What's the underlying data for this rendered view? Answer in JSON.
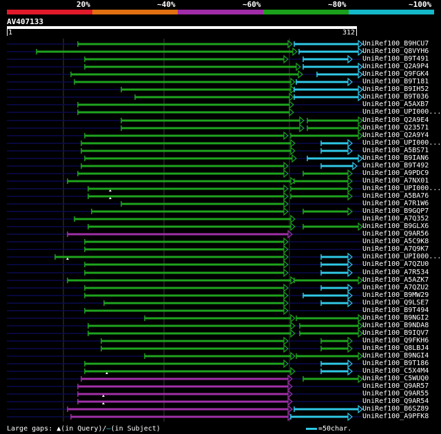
{
  "legend": [
    {
      "label": "20%",
      "color": "#e01a2a"
    },
    {
      "label": "~40%",
      "color": "#e07010"
    },
    {
      "label": "~60%",
      "color": "#a02ca8"
    },
    {
      "label": "~80%",
      "color": "#1aa01a"
    },
    {
      "label": "~100%",
      "color": "#14b8c8"
    }
  ],
  "query": {
    "title": "AV407133",
    "start": "1",
    "end": "312"
  },
  "colors": {
    "green": "#1ea41e",
    "magenta": "#a030a8",
    "cyan": "#2fc9e6",
    "dark": "#0a0a50",
    "grid": "#3a3a3a"
  },
  "hits": [
    {
      "label": "UniRef100_B9HCU7",
      "dark": [
        10,
        525
      ],
      "segs": [
        [
          113,
          418,
          "g"
        ],
        [
          427,
          520,
          "c"
        ]
      ]
    },
    {
      "label": "UniRef100_Q8VYH6",
      "dark": [
        10,
        525
      ],
      "segs": [
        [
          53,
          425,
          "g"
        ],
        [
          434,
          520,
          "c"
        ]
      ]
    },
    {
      "label": "UniRef100_B9T491",
      "dark": [
        10,
        525
      ],
      "segs": [
        [
          123,
          412,
          "g"
        ],
        [
          440,
          505,
          "c"
        ]
      ]
    },
    {
      "label": "UniRef100_Q2A9P4",
      "dark": [
        10,
        525
      ],
      "segs": [
        [
          123,
          430,
          "g"
        ],
        [
          440,
          520,
          "c"
        ]
      ]
    },
    {
      "label": "UniRef100_Q9FGK4",
      "dark": [
        10,
        525
      ],
      "segs": [
        [
          103,
          433,
          "g"
        ],
        [
          460,
          520,
          "c"
        ]
      ]
    },
    {
      "label": "UniRef100_B9T181",
      "dark": [
        10,
        525
      ],
      "segs": [
        [
          108,
          422,
          "g"
        ],
        [
          430,
          505,
          "c"
        ]
      ]
    },
    {
      "label": "UniRef100_B9IH52",
      "dark": [
        10,
        525
      ],
      "segs": [
        [
          176,
          422,
          "g"
        ],
        [
          427,
          520,
          "c"
        ]
      ]
    },
    {
      "label": "UniRef100_B9T036",
      "dark": [
        10,
        525
      ],
      "segs": [
        [
          196,
          420,
          "g"
        ],
        [
          427,
          520,
          "c"
        ]
      ]
    },
    {
      "label": "UniRef100_A5AXB7",
      "dark": [
        10,
        525
      ],
      "segs": [
        [
          113,
          420,
          "g"
        ]
      ]
    },
    {
      "label": "UniRef100_UPI000...",
      "dark": [
        10,
        525
      ],
      "segs": [
        [
          113,
          420,
          "g"
        ]
      ]
    },
    {
      "label": "UniRef100_Q2A9E4",
      "dark": [
        10,
        525
      ],
      "segs": [
        [
          176,
          435,
          "g"
        ],
        [
          446,
          520,
          "g"
        ]
      ]
    },
    {
      "label": "UniRef100_Q23571",
      "dark": [
        10,
        525
      ],
      "segs": [
        [
          176,
          435,
          "g"
        ],
        [
          446,
          520,
          "g"
        ]
      ]
    },
    {
      "label": "UniRef100_Q2A9Y4",
      "dark": [
        10,
        525
      ],
      "segs": [
        [
          123,
          412,
          "g"
        ],
        [
          422,
          520,
          "g"
        ]
      ]
    },
    {
      "label": "UniRef100_UPI000...",
      "dark": [
        10,
        525
      ],
      "segs": [
        [
          118,
          422,
          "g"
        ],
        [
          466,
          505,
          "c"
        ]
      ]
    },
    {
      "label": "UniRef100_A5BS71",
      "dark": [
        10,
        525
      ],
      "segs": [
        [
          118,
          422,
          "g"
        ],
        [
          466,
          505,
          "c"
        ]
      ]
    },
    {
      "label": "UniRef100_B9IAN6",
      "dark": [
        10,
        525
      ],
      "segs": [
        [
          123,
          424,
          "g"
        ],
        [
          446,
          520,
          "c"
        ]
      ]
    },
    {
      "label": "UniRef100_B9T492",
      "dark": [
        10,
        525
      ],
      "segs": [
        [
          118,
          412,
          "g"
        ],
        [
          466,
          512,
          "c"
        ]
      ]
    },
    {
      "label": "UniRef100_A9PDC9",
      "dark": [
        10,
        525
      ],
      "segs": [
        [
          113,
          412,
          "g"
        ],
        [
          440,
          505,
          "g"
        ]
      ]
    },
    {
      "label": "UniRef100_A7NX01",
      "dark": [
        10,
        525
      ],
      "segs": [
        [
          98,
          422,
          "g"
        ],
        [
          427,
          505,
          "g"
        ]
      ]
    },
    {
      "label": "UniRef100_UPI000...",
      "dark": [
        10,
        525
      ],
      "segs": [
        [
          128,
          412,
          "g"
        ],
        [
          422,
          505,
          "g"
        ]
      ],
      "gap": 160
    },
    {
      "label": "UniRef100_A5BA76",
      "dark": [
        10,
        525
      ],
      "segs": [
        [
          128,
          412,
          "g"
        ],
        [
          422,
          505,
          "g"
        ]
      ],
      "gap": 160
    },
    {
      "label": "UniRef100_A7R1W6",
      "dark": [
        10,
        525
      ],
      "segs": [
        [
          176,
          412,
          "g"
        ]
      ]
    },
    {
      "label": "UniRef100_B9GQP7",
      "dark": [
        10,
        525
      ],
      "segs": [
        [
          133,
          412,
          "g"
        ],
        [
          440,
          505,
          "g"
        ]
      ]
    },
    {
      "label": "UniRef100_A7Q352",
      "dark": [
        10,
        525
      ],
      "segs": [
        [
          108,
          422,
          "g"
        ]
      ]
    },
    {
      "label": "UniRef100_B9GLX6",
      "dark": [
        10,
        525
      ],
      "segs": [
        [
          128,
          422,
          "g"
        ],
        [
          440,
          520,
          "g"
        ]
      ]
    },
    {
      "label": "UniRef100_Q9AR56",
      "dark": [
        10,
        525
      ],
      "segs": [
        [
          98,
          418,
          "m"
        ]
      ]
    },
    {
      "label": "UniRef100_A5C9K8",
      "dark": [
        10,
        525
      ],
      "segs": [
        [
          123,
          412,
          "g"
        ]
      ]
    },
    {
      "label": "UniRef100_A7Q9K7",
      "dark": [
        10,
        525
      ],
      "segs": [
        [
          123,
          412,
          "g"
        ]
      ]
    },
    {
      "label": "UniRef100_UPI000...",
      "dark": [
        10,
        525
      ],
      "segs": [
        [
          80,
          412,
          "g"
        ],
        [
          466,
          505,
          "c"
        ]
      ],
      "gap": 98
    },
    {
      "label": "UniRef100_A7QZU0",
      "dark": [
        10,
        525
      ],
      "segs": [
        [
          123,
          412,
          "g"
        ],
        [
          466,
          505,
          "c"
        ]
      ]
    },
    {
      "label": "UniRef100_A7R534",
      "dark": [
        10,
        525
      ],
      "segs": [
        [
          123,
          412,
          "g"
        ],
        [
          466,
          505,
          "c"
        ]
      ]
    },
    {
      "label": "UniRef100_A5AZK7",
      "dark": [
        10,
        525
      ],
      "segs": [
        [
          98,
          422,
          "g"
        ],
        [
          427,
          520,
          "g"
        ]
      ]
    },
    {
      "label": "UniRef100_A7QZU2",
      "dark": [
        10,
        525
      ],
      "segs": [
        [
          123,
          412,
          "g"
        ],
        [
          466,
          505,
          "c"
        ]
      ]
    },
    {
      "label": "UniRef100_B9MW29",
      "dark": [
        10,
        525
      ],
      "segs": [
        [
          123,
          412,
          "g"
        ],
        [
          440,
          505,
          "c"
        ]
      ]
    },
    {
      "label": "UniRef100_Q9LSE7",
      "dark": [
        10,
        525
      ],
      "segs": [
        [
          151,
          412,
          "g"
        ],
        [
          466,
          505,
          "c"
        ]
      ]
    },
    {
      "label": "UniRef100_B9T494",
      "dark": [
        10,
        525
      ],
      "segs": [
        [
          123,
          412,
          "g"
        ]
      ]
    },
    {
      "label": "UniRef100_B9NGI2",
      "dark": [
        10,
        525
      ],
      "segs": [
        [
          210,
          422,
          "g"
        ],
        [
          430,
          520,
          "g"
        ]
      ]
    },
    {
      "label": "UniRef100_B9NDA8",
      "dark": [
        10,
        525
      ],
      "segs": [
        [
          128,
          422,
          "g"
        ],
        [
          435,
          520,
          "g"
        ]
      ]
    },
    {
      "label": "UniRef100_B9IQV7",
      "dark": [
        10,
        525
      ],
      "segs": [
        [
          128,
          422,
          "g"
        ],
        [
          435,
          520,
          "g"
        ]
      ]
    },
    {
      "label": "UniRef100_Q9FKH6",
      "dark": [
        10,
        525
      ],
      "segs": [
        [
          147,
          412,
          "g"
        ],
        [
          466,
          505,
          "g"
        ]
      ]
    },
    {
      "label": "UniRef100_Q8LBJ4",
      "dark": [
        10,
        525
      ],
      "segs": [
        [
          147,
          412,
          "g"
        ],
        [
          466,
          505,
          "g"
        ]
      ]
    },
    {
      "label": "UniRef100_B9NGI4",
      "dark": [
        10,
        525
      ],
      "segs": [
        [
          210,
          422,
          "g"
        ],
        [
          430,
          520,
          "g"
        ]
      ]
    },
    {
      "label": "UniRef100_B9T186",
      "dark": [
        10,
        525
      ],
      "segs": [
        [
          123,
          412,
          "g"
        ],
        [
          466,
          505,
          "c"
        ]
      ]
    },
    {
      "label": "UniRef100_C5X4M4",
      "dark": [
        10,
        525
      ],
      "segs": [
        [
          123,
          422,
          "g"
        ],
        [
          466,
          505,
          "c"
        ]
      ],
      "gap": 155
    },
    {
      "label": "UniRef100_C5WUQ0",
      "dark": [
        10,
        525
      ],
      "segs": [
        [
          118,
          418,
          "m"
        ],
        [
          440,
          520,
          "g"
        ]
      ]
    },
    {
      "label": "UniRef100_Q9AR57",
      "dark": [
        10,
        525
      ],
      "segs": [
        [
          113,
          418,
          "m"
        ]
      ]
    },
    {
      "label": "UniRef100_Q9AR55",
      "dark": [
        10,
        525
      ],
      "segs": [
        [
          113,
          418,
          "m"
        ]
      ],
      "gap": 150
    },
    {
      "label": "UniRef100_Q9AR54",
      "dark": [
        10,
        525
      ],
      "segs": [
        [
          113,
          418,
          "m"
        ]
      ],
      "gap": 150
    },
    {
      "label": "UniRef100_B6SZ89",
      "dark": [
        10,
        525
      ],
      "segs": [
        [
          98,
          418,
          "m"
        ],
        [
          427,
          520,
          "c"
        ]
      ]
    },
    {
      "label": "UniRef100_A9PFK8",
      "dark": [
        10,
        525
      ],
      "segs": [
        [
          103,
          418,
          "m"
        ],
        [
          422,
          505,
          "c"
        ]
      ]
    }
  ],
  "footer": {
    "gaps_label": "Large gaps:",
    "gap_query": "(in Query)/",
    "gap_subject": "(in Subject)",
    "scale_label": "=50char."
  }
}
